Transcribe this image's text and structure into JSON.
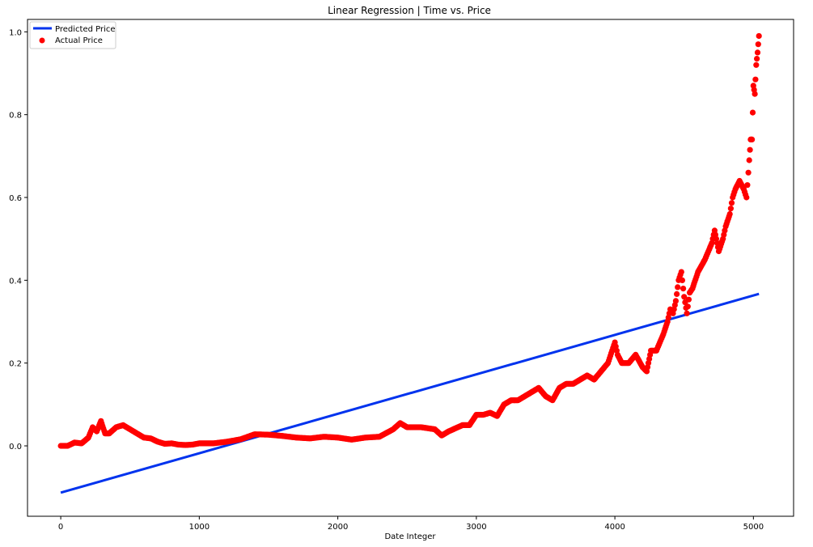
{
  "chart_data": {
    "type": "scatter",
    "title": "Linear Regression | Time vs. Price",
    "xlabel": "Date Integer",
    "ylabel": "",
    "xlim": [
      -240,
      5290
    ],
    "ylim": [
      -0.17,
      1.03
    ],
    "xticks": [
      0,
      1000,
      2000,
      3000,
      4000,
      5000
    ],
    "xtick_labels": [
      "0",
      "1000",
      "2000",
      "3000",
      "4000",
      "5000"
    ],
    "yticks": [
      0.0,
      0.2,
      0.4,
      0.6,
      0.8,
      1.0
    ],
    "ytick_labels": [
      "0.0",
      "0.2",
      "0.4",
      "0.6",
      "0.8",
      "1.0"
    ],
    "grid": false,
    "legend_position": "top-left",
    "series": [
      {
        "name": "Predicted Price",
        "kind": "line",
        "color": "#0033ee",
        "x": [
          0,
          5040
        ],
        "y": [
          -0.113,
          0.367
        ]
      },
      {
        "name": "Actual Price",
        "kind": "scatter",
        "color": "#ff0000",
        "x": [
          0,
          50,
          100,
          150,
          200,
          230,
          260,
          290,
          320,
          350,
          400,
          450,
          500,
          550,
          600,
          650,
          700,
          750,
          800,
          850,
          900,
          950,
          1000,
          1100,
          1200,
          1300,
          1400,
          1500,
          1600,
          1700,
          1800,
          1900,
          2000,
          2100,
          2200,
          2300,
          2400,
          2450,
          2500,
          2600,
          2700,
          2750,
          2800,
          2900,
          2950,
          3000,
          3050,
          3100,
          3150,
          3200,
          3250,
          3300,
          3350,
          3400,
          3450,
          3500,
          3550,
          3600,
          3650,
          3700,
          3750,
          3800,
          3850,
          3900,
          3950,
          3980,
          4000,
          4020,
          4050,
          4100,
          4150,
          4200,
          4230,
          4260,
          4300,
          4350,
          4380,
          4400,
          4420,
          4440,
          4460,
          4480,
          4500,
          4520,
          4540,
          4560,
          4600,
          4650,
          4700,
          4720,
          4750,
          4780,
          4800,
          4830,
          4850,
          4870,
          4900,
          4930,
          4950,
          4970,
          4980,
          4990,
          5000,
          5010,
          5020,
          5030,
          5040
        ],
        "y": [
          0.0,
          0.0,
          0.008,
          0.006,
          0.02,
          0.045,
          0.035,
          0.06,
          0.03,
          0.03,
          0.045,
          0.05,
          0.04,
          0.03,
          0.02,
          0.018,
          0.01,
          0.005,
          0.006,
          0.003,
          0.002,
          0.003,
          0.006,
          0.006,
          0.01,
          0.016,
          0.028,
          0.027,
          0.024,
          0.02,
          0.018,
          0.022,
          0.02,
          0.015,
          0.02,
          0.022,
          0.04,
          0.055,
          0.045,
          0.045,
          0.04,
          0.025,
          0.035,
          0.05,
          0.05,
          0.075,
          0.075,
          0.08,
          0.072,
          0.1,
          0.11,
          0.11,
          0.12,
          0.13,
          0.14,
          0.12,
          0.11,
          0.14,
          0.15,
          0.15,
          0.16,
          0.17,
          0.16,
          0.18,
          0.2,
          0.23,
          0.25,
          0.22,
          0.2,
          0.2,
          0.22,
          0.19,
          0.18,
          0.23,
          0.23,
          0.27,
          0.3,
          0.33,
          0.32,
          0.35,
          0.4,
          0.42,
          0.36,
          0.32,
          0.37,
          0.38,
          0.42,
          0.45,
          0.49,
          0.52,
          0.47,
          0.5,
          0.53,
          0.56,
          0.6,
          0.62,
          0.64,
          0.62,
          0.6,
          0.69,
          0.74,
          0.74,
          0.87,
          0.85,
          0.92,
          0.95,
          0.99
        ]
      }
    ]
  }
}
